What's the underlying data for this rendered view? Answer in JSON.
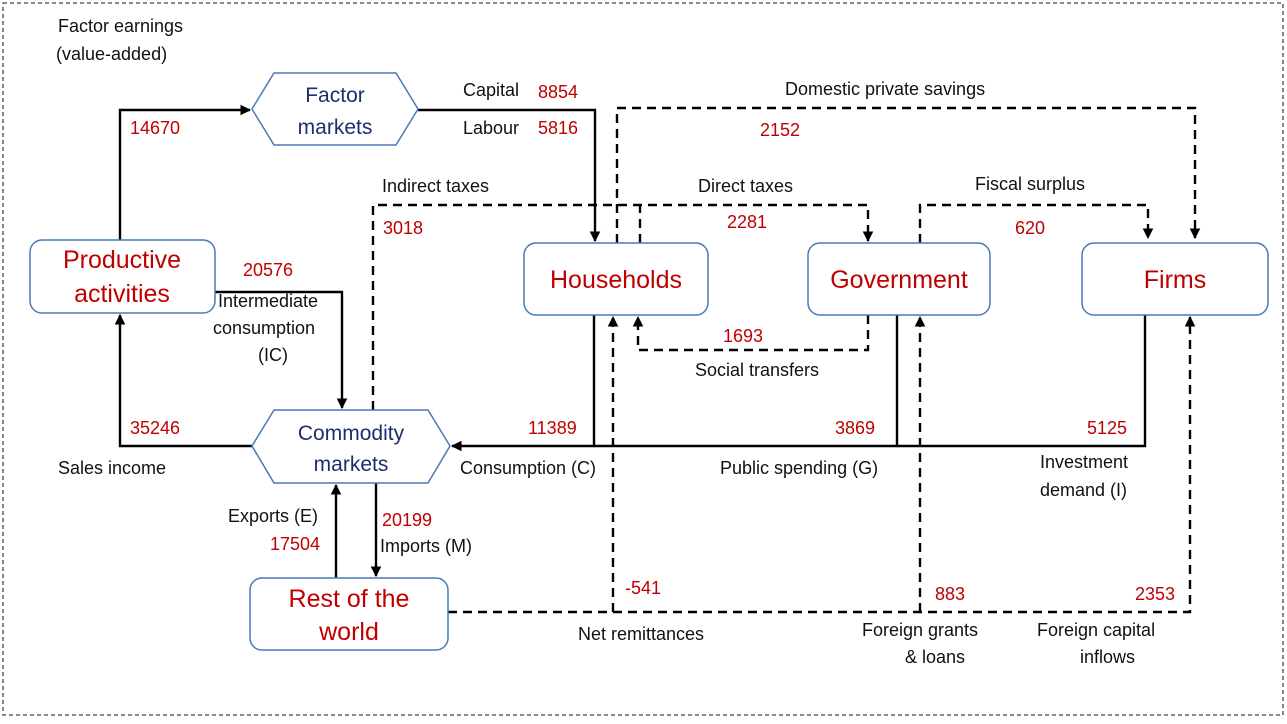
{
  "nodes": [
    {
      "label": [
        "Productive",
        "activities"
      ]
    },
    {
      "label": [
        "Factor",
        "markets"
      ]
    },
    {
      "label": [
        "Commodity",
        "markets"
      ]
    },
    {
      "label": [
        "Households"
      ]
    },
    {
      "label": [
        "Government"
      ]
    },
    {
      "label": [
        "Firms"
      ]
    },
    {
      "label": [
        "Rest of the",
        "world"
      ]
    }
  ],
  "flows": [
    {
      "label": [
        "Factor earnings",
        "(value-added)"
      ],
      "value": 14670
    },
    {
      "label": [
        "Capital"
      ],
      "value": 8854
    },
    {
      "label": [
        "Labour"
      ],
      "value": 5816
    },
    {
      "label": [
        "Domestic private savings"
      ],
      "value": 2152
    },
    {
      "label": [
        "Indirect taxes"
      ],
      "value": 3018
    },
    {
      "label": [
        "Direct taxes"
      ],
      "value": 2281
    },
    {
      "label": [
        "Fiscal surplus"
      ],
      "value": 620
    },
    {
      "label": [
        "Intermediate",
        "consumption",
        "(IC)"
      ],
      "value": 20576
    },
    {
      "label": [
        "Social transfers"
      ],
      "value": 1693
    },
    {
      "label": [
        "Sales income"
      ],
      "value": 35246
    },
    {
      "label": [
        "Consumption (C)"
      ],
      "value": 11389
    },
    {
      "label": [
        "Public spending (G)"
      ],
      "value": 3869
    },
    {
      "label": [
        "Investment",
        "demand (I)"
      ],
      "value": 5125
    },
    {
      "label": [
        "Exports (E)"
      ],
      "value": 17504
    },
    {
      "label": [
        "Imports (M)"
      ],
      "value": 20199
    },
    {
      "label": [
        "Net remittances"
      ],
      "value": -541
    },
    {
      "label": [
        "Foreign grants",
        "& loans"
      ],
      "value": 883
    },
    {
      "label": [
        "Foreign capital",
        "inflows"
      ],
      "value": 2353
    }
  ]
}
